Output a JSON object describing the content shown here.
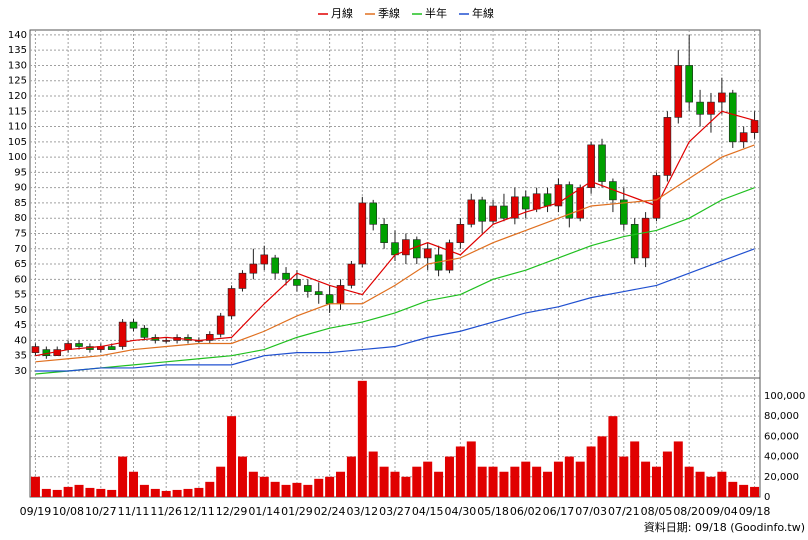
{
  "chart_data": [
    {
      "type": "candlestick",
      "up_color": "#e00000",
      "down_color": "#00a000",
      "grid": true,
      "xlim": [
        -0.5,
        66.5
      ],
      "ylim": [
        27.7,
        141.6
      ],
      "yticks": [
        30,
        35,
        40,
        45,
        50,
        55,
        60,
        65,
        70,
        75,
        80,
        85,
        90,
        95,
        100,
        105,
        110,
        115,
        120,
        125,
        130,
        135,
        140
      ],
      "open": [
        36,
        37,
        35,
        37,
        39,
        38,
        37,
        38,
        38,
        46,
        44,
        41,
        40,
        40,
        41,
        40,
        40,
        42,
        48,
        57,
        62,
        65,
        67,
        62,
        60,
        58,
        56,
        55,
        52,
        58,
        65,
        85,
        78,
        72,
        68,
        73,
        67,
        68,
        63,
        72,
        78,
        86,
        79,
        84,
        80,
        87,
        83,
        88,
        84,
        91,
        80,
        90,
        104,
        92,
        86,
        78,
        67,
        80,
        94,
        113,
        130,
        118,
        114,
        118,
        121,
        105,
        108
      ],
      "high": [
        39,
        38,
        38,
        40,
        40,
        39,
        39,
        39,
        47,
        47,
        45,
        42,
        41,
        42,
        42,
        41,
        43,
        49,
        58,
        63,
        70,
        71,
        68,
        64,
        63,
        60,
        59,
        58,
        60,
        66,
        87,
        86,
        80,
        76,
        75,
        74,
        72,
        71,
        73,
        80,
        88,
        87,
        86,
        88,
        90,
        89,
        90,
        90,
        93,
        92,
        91,
        105,
        106,
        93,
        90,
        80,
        82,
        95,
        115,
        135,
        140,
        122,
        121,
        126,
        122,
        110,
        115
      ],
      "low": [
        35,
        34,
        35,
        36,
        37,
        36,
        36,
        37,
        37,
        43,
        40,
        39,
        39,
        39,
        39,
        39,
        39,
        41,
        47,
        56,
        60,
        63,
        60,
        58,
        56,
        54,
        52,
        49,
        50,
        57,
        64,
        76,
        70,
        66,
        65,
        65,
        63,
        61,
        62,
        70,
        77,
        75,
        78,
        79,
        78,
        80,
        82,
        82,
        82,
        77,
        79,
        88,
        90,
        82,
        76,
        65,
        64,
        79,
        92,
        111,
        115,
        110,
        108,
        114,
        103,
        103,
        106
      ],
      "close": [
        38,
        35,
        37,
        39,
        38,
        37,
        38,
        37,
        46,
        44,
        41,
        40,
        40,
        41,
        40,
        40,
        42,
        48,
        57,
        62,
        65,
        68,
        62,
        60,
        58,
        56,
        55,
        52,
        58,
        65,
        85,
        78,
        72,
        68,
        73,
        67,
        70,
        63,
        72,
        78,
        86,
        79,
        84,
        80,
        87,
        83,
        88,
        84,
        91,
        80,
        90,
        104,
        92,
        86,
        78,
        67,
        80,
        94,
        113,
        130,
        118,
        114,
        118,
        121,
        105,
        108,
        112
      ],
      "series": [
        {
          "name": "月線",
          "color": "#e00000",
          "x": [
            0,
            3,
            6,
            9,
            12,
            15,
            18,
            21,
            24,
            27,
            30,
            33,
            36,
            39,
            42,
            45,
            48,
            51,
            54,
            57,
            60,
            63,
            66
          ],
          "values": [
            35,
            37,
            38,
            40,
            41,
            40,
            41,
            52,
            62,
            58,
            55,
            68,
            72,
            68,
            78,
            82,
            85,
            92,
            88,
            84,
            105,
            115,
            112
          ]
        },
        {
          "name": "季線",
          "color": "#e07020",
          "x": [
            0,
            3,
            6,
            9,
            12,
            15,
            18,
            21,
            24,
            27,
            30,
            33,
            36,
            39,
            42,
            45,
            48,
            51,
            54,
            57,
            60,
            63,
            66
          ],
          "values": [
            33,
            34,
            35,
            37,
            38,
            39,
            39,
            43,
            48,
            52,
            52,
            58,
            65,
            67,
            72,
            76,
            80,
            84,
            85,
            86,
            93,
            100,
            104
          ]
        },
        {
          "name": "半年",
          "color": "#20c020",
          "x": [
            0,
            3,
            6,
            9,
            12,
            15,
            18,
            21,
            24,
            27,
            30,
            33,
            36,
            39,
            42,
            45,
            48,
            51,
            54,
            57,
            60,
            63,
            66
          ],
          "values": [
            29,
            30,
            31,
            32,
            33,
            34,
            35,
            37,
            41,
            44,
            46,
            49,
            53,
            55,
            60,
            63,
            67,
            71,
            74,
            76,
            80,
            86,
            90
          ]
        },
        {
          "name": "年線",
          "color": "#2050d0",
          "x": [
            0,
            3,
            6,
            9,
            12,
            15,
            18,
            21,
            24,
            27,
            30,
            33,
            36,
            39,
            42,
            45,
            48,
            51,
            54,
            57,
            60,
            63,
            66
          ],
          "values": [
            30,
            30,
            31,
            31,
            32,
            32,
            32,
            35,
            36,
            36,
            37,
            38,
            41,
            43,
            46,
            49,
            51,
            54,
            56,
            58,
            62,
            66,
            70
          ]
        }
      ]
    },
    {
      "type": "bar",
      "color": "#e00000",
      "grid": true,
      "xlim": [
        -0.5,
        66.5
      ],
      "ylim": [
        0,
        117800
      ],
      "yticks": [
        0,
        {
          "value": 20000,
          "label": "20,000"
        },
        {
          "value": 40000,
          "label": "40,000"
        },
        {
          "value": 60000,
          "label": "60,000"
        },
        {
          "value": 80000,
          "label": "80,000"
        },
        {
          "value": 100000,
          "label": "100,000"
        }
      ],
      "xticks": [
        {
          "value": 0,
          "label": "09/19"
        },
        {
          "value": 3,
          "label": "10/08"
        },
        {
          "value": 6,
          "label": "10/27"
        },
        {
          "value": 9,
          "label": "11/11"
        },
        {
          "value": 12,
          "label": "11/26"
        },
        {
          "value": 15,
          "label": "12/11"
        },
        {
          "value": 18,
          "label": "12/29"
        },
        {
          "value": 21,
          "label": "01/14"
        },
        {
          "value": 24,
          "label": "01/29"
        },
        {
          "value": 27,
          "label": "02/24"
        },
        {
          "value": 30,
          "label": "03/12"
        },
        {
          "value": 33,
          "label": "03/27"
        },
        {
          "value": 36,
          "label": "04/15"
        },
        {
          "value": 39,
          "label": "04/30"
        },
        {
          "value": 42,
          "label": "05/18"
        },
        {
          "value": 45,
          "label": "06/02"
        },
        {
          "value": 48,
          "label": "06/17"
        },
        {
          "value": 51,
          "label": "07/03"
        },
        {
          "value": 54,
          "label": "07/21"
        },
        {
          "value": 57,
          "label": "08/05"
        },
        {
          "value": 60,
          "label": "08/20"
        },
        {
          "value": 63,
          "label": "09/04"
        },
        {
          "value": 66,
          "label": "09/18"
        }
      ],
      "values": [
        20000,
        8000,
        7000,
        10000,
        12000,
        9000,
        8000,
        7000,
        40000,
        25000,
        12000,
        8000,
        6000,
        7000,
        8000,
        9000,
        15000,
        30000,
        80000,
        40000,
        25000,
        20000,
        15000,
        12000,
        14000,
        12000,
        18000,
        20000,
        25000,
        40000,
        115000,
        45000,
        30000,
        25000,
        20000,
        30000,
        35000,
        25000,
        40000,
        50000,
        55000,
        30000,
        30000,
        25000,
        30000,
        35000,
        30000,
        25000,
        35000,
        40000,
        35000,
        50000,
        60000,
        80000,
        40000,
        55000,
        35000,
        30000,
        45000,
        55000,
        30000,
        25000,
        20000,
        25000,
        15000,
        12000,
        10000
      ],
      "footer": "資料日期: 09/18 (Goodinfo.tw)"
    }
  ]
}
